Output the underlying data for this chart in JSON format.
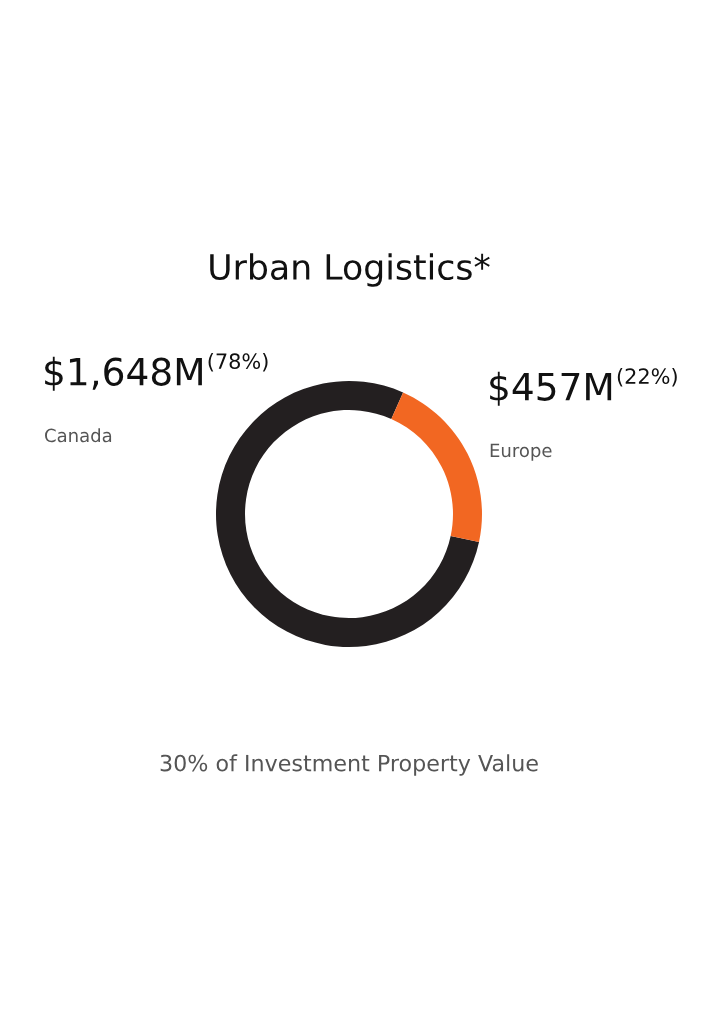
{
  "chart_data": {
    "type": "donut",
    "title": "Urban Logistics*",
    "categories": [
      "Canada",
      "Europe"
    ],
    "values": [
      1648,
      457
    ],
    "colors": [
      "#231f20",
      "#f26722"
    ],
    "value_labels": [
      "$1,648M",
      "$457M"
    ],
    "annotations": [
      "(78%)",
      "(22%)",
      "30% of Investment Property Value"
    ]
  }
}
